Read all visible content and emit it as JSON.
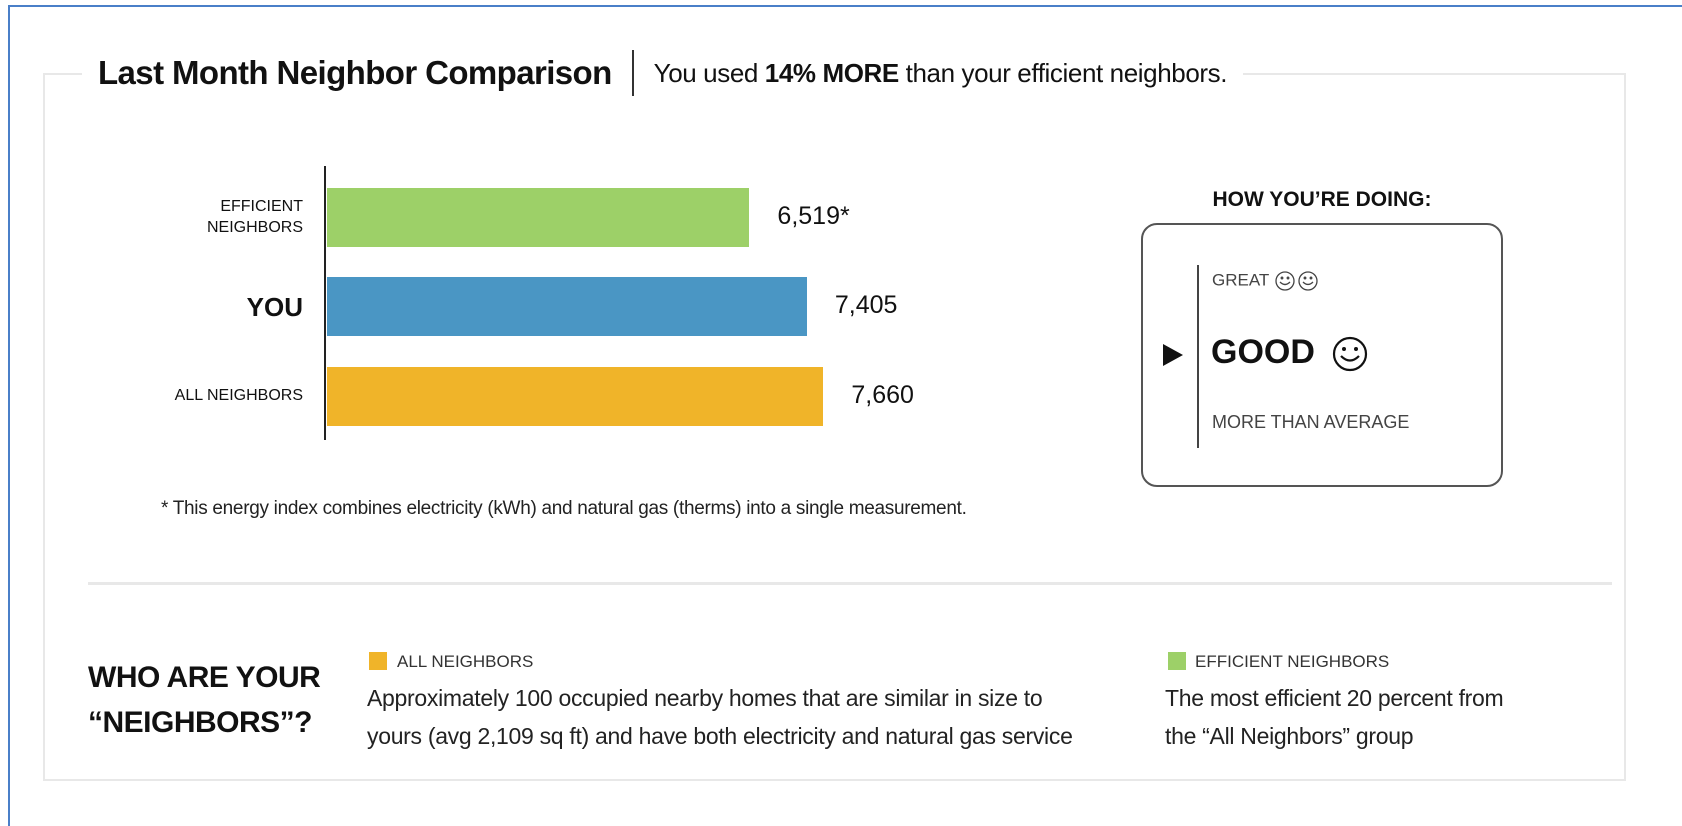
{
  "chart_data": {
    "type": "bar",
    "orientation": "horizontal",
    "title": "Last Month Neighbor Comparison",
    "subtitle": {
      "before": "You used",
      "emphasis": "14% MORE",
      "after": "than your efficient neighbors."
    },
    "categories": [
      "EFFICIENT NEIGHBORS",
      "YOU",
      "ALL NEIGHBORS"
    ],
    "values": [
      6519,
      7405,
      7660
    ],
    "value_labels": [
      "6,519*",
      "7,405",
      "7,660"
    ],
    "colors": [
      "#9dd068",
      "#4a96c4",
      "#f0b429"
    ],
    "footnote": "* This energy index combines electricity (kWh) and natural gas (therms) into a single measurement."
  },
  "doing": {
    "heading": "HOW YOU’RE DOING:",
    "levels": [
      "GREAT",
      "GOOD",
      "MORE THAN AVERAGE"
    ]
  },
  "neighbors": {
    "heading": "WHO ARE YOUR “NEIGHBORS”?",
    "groups": [
      {
        "name": "ALL NEIGHBORS",
        "description": "Approximately 100 occupied nearby homes that are similar in size to yours (avg 2,109 sq ft) and have both electricity and natural gas service"
      },
      {
        "name": "EFFICIENT NEIGHBORS",
        "description": "The most efficient 20 percent from the “All Neighbors” group"
      }
    ]
  }
}
